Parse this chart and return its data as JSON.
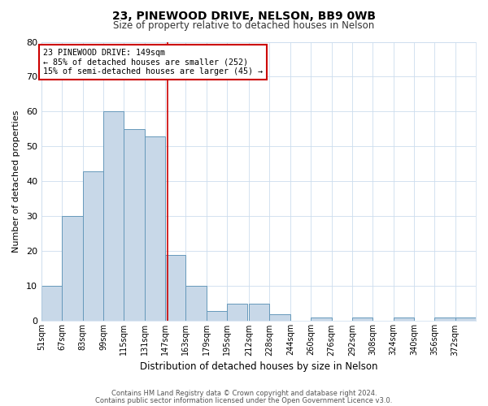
{
  "title1": "23, PINEWOOD DRIVE, NELSON, BB9 0WB",
  "title2": "Size of property relative to detached houses in Nelson",
  "xlabel": "Distribution of detached houses by size in Nelson",
  "ylabel": "Number of detached properties",
  "bin_labels": [
    "51sqm",
    "67sqm",
    "83sqm",
    "99sqm",
    "115sqm",
    "131sqm",
    "147sqm",
    "163sqm",
    "179sqm",
    "195sqm",
    "212sqm",
    "228sqm",
    "244sqm",
    "260sqm",
    "276sqm",
    "292sqm",
    "308sqm",
    "324sqm",
    "340sqm",
    "356sqm",
    "372sqm"
  ],
  "bin_edges": [
    51,
    67,
    83,
    99,
    115,
    131,
    147,
    163,
    179,
    195,
    212,
    228,
    244,
    260,
    276,
    292,
    308,
    324,
    340,
    356,
    372,
    388
  ],
  "bar_heights": [
    10,
    30,
    43,
    60,
    55,
    53,
    19,
    10,
    3,
    5,
    5,
    2,
    0,
    1,
    0,
    1,
    0,
    1,
    0,
    1,
    1
  ],
  "bar_color": "#c8d8e8",
  "bar_edge_color": "#6699bb",
  "property_size": 149,
  "annotation_line1": "23 PINEWOOD DRIVE: 149sqm",
  "annotation_line2": "← 85% of detached houses are smaller (252)",
  "annotation_line3": "15% of semi-detached houses are larger (45) →",
  "vline_color": "#cc0000",
  "annotation_box_facecolor": "#ffffff",
  "annotation_box_edgecolor": "#cc0000",
  "ylim": [
    0,
    80
  ],
  "yticks": [
    0,
    10,
    20,
    30,
    40,
    50,
    60,
    70,
    80
  ],
  "footnote1": "Contains HM Land Registry data © Crown copyright and database right 2024.",
  "footnote2": "Contains public sector information licensed under the Open Government Licence v3.0.",
  "bg_color": "#ffffff",
  "plot_bg_color": "#ffffff",
  "grid_color": "#ccddee"
}
